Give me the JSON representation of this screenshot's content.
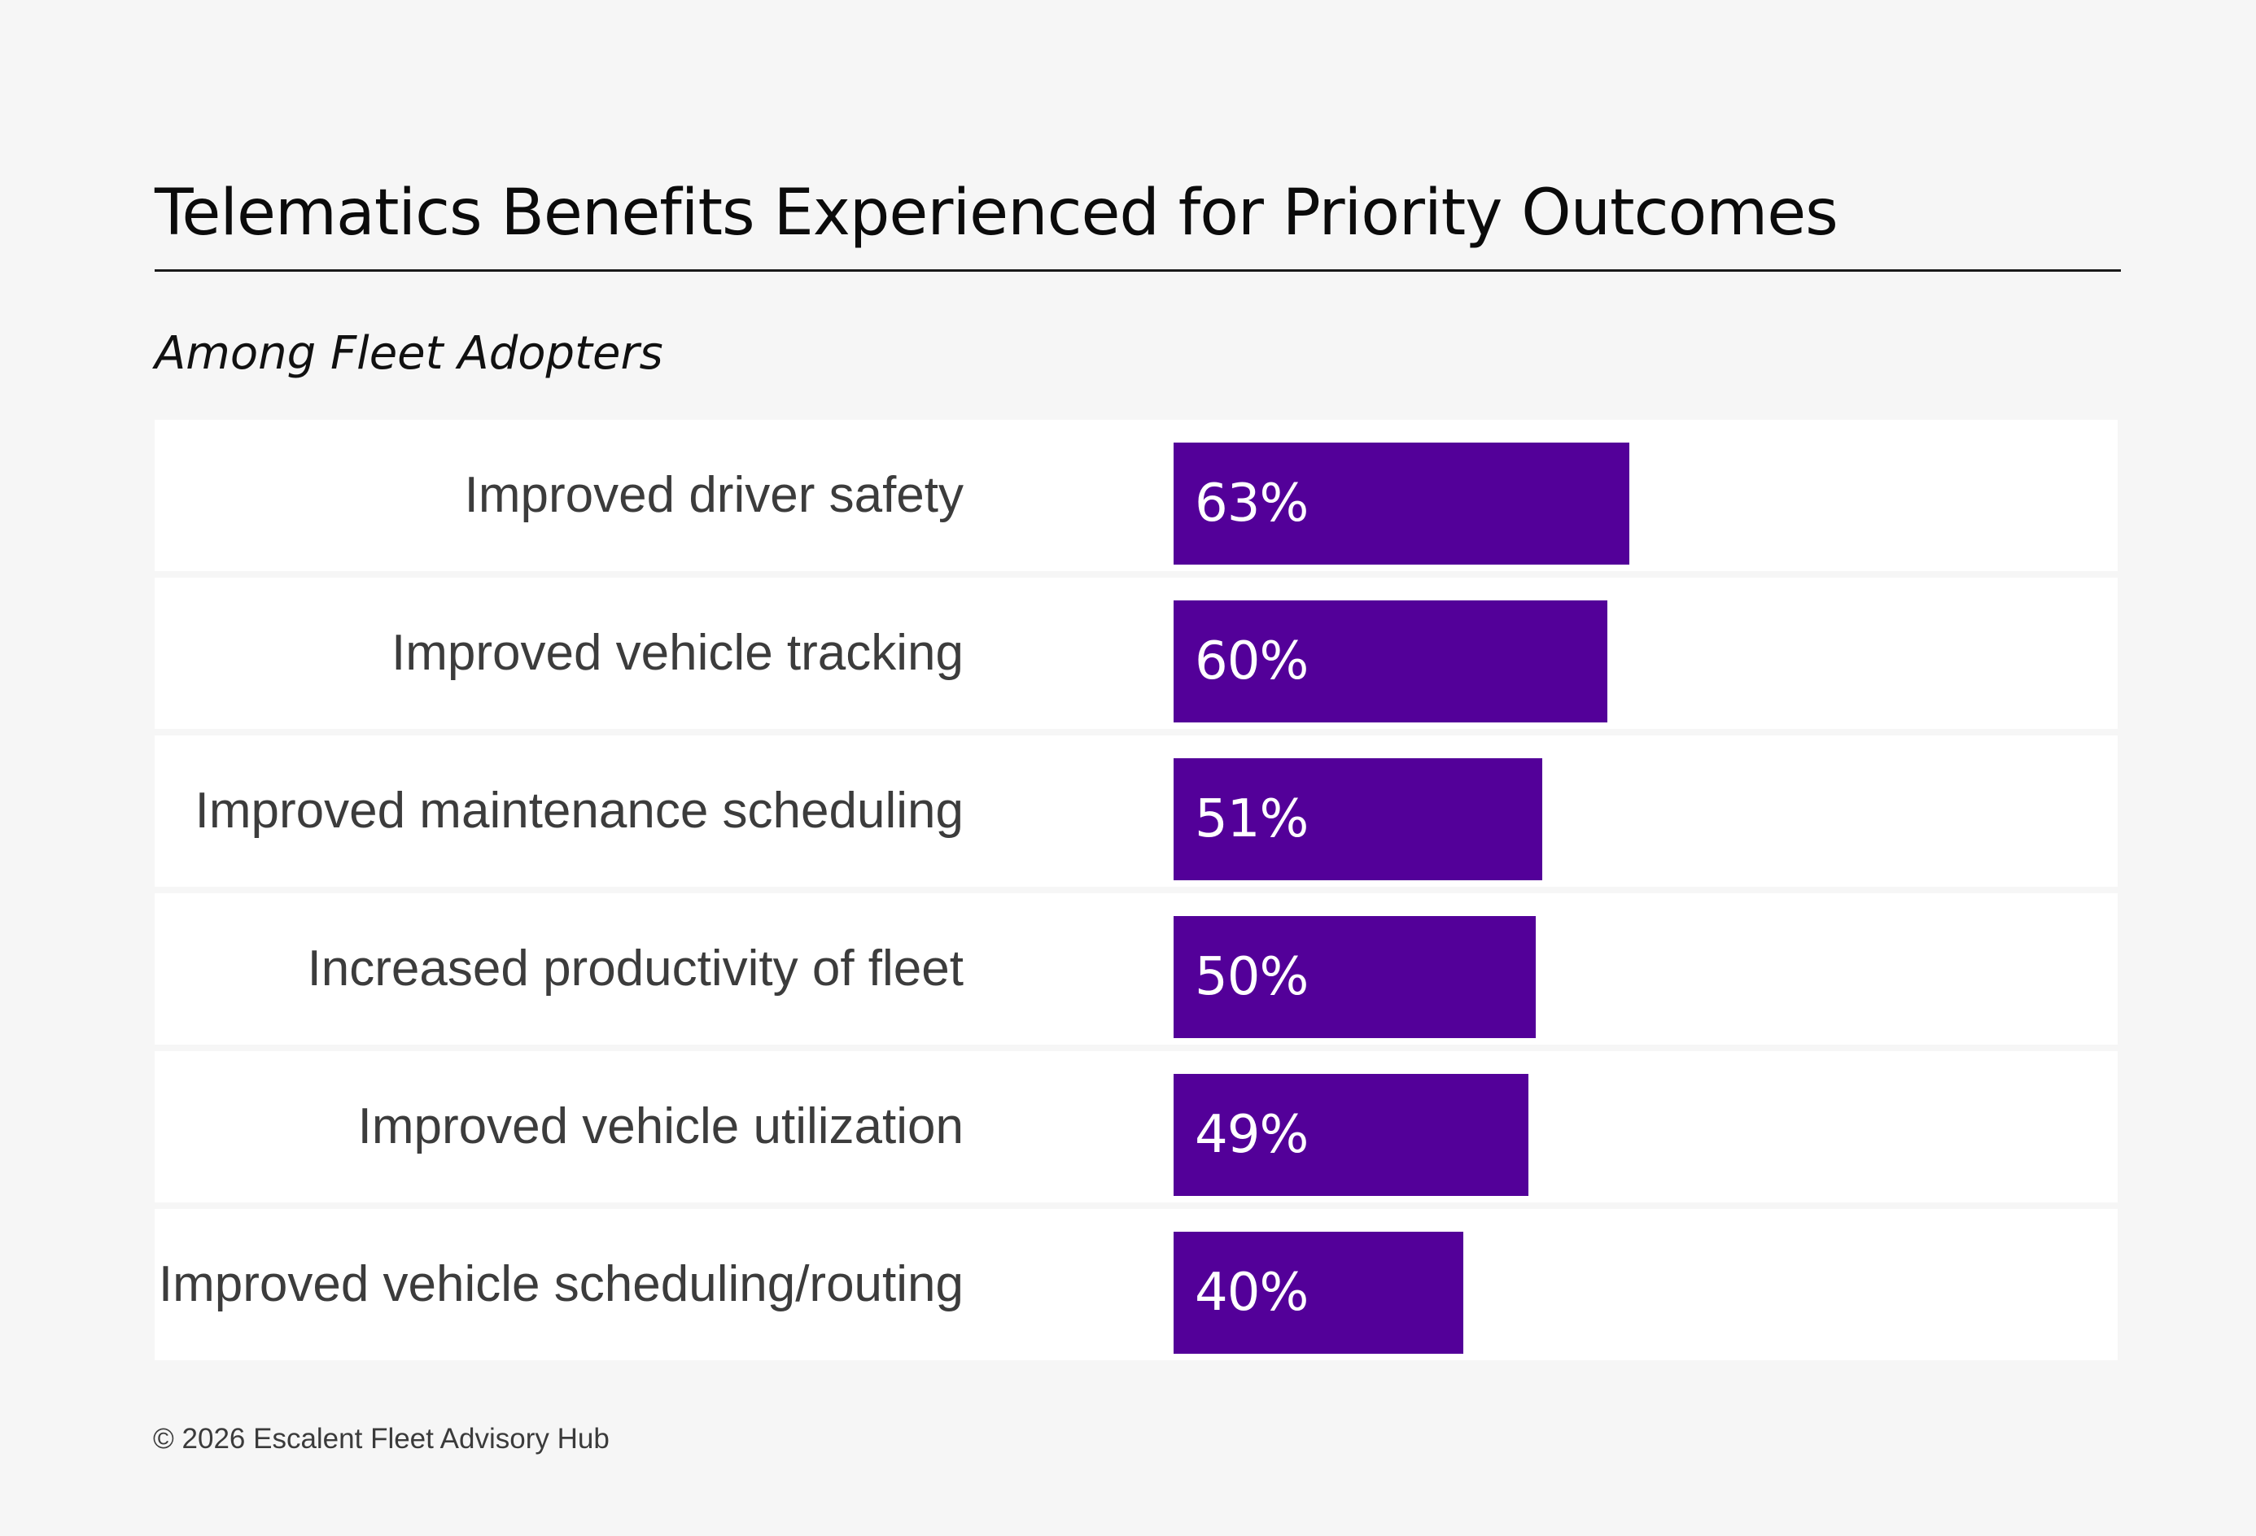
{
  "chart_data": {
    "type": "bar",
    "orientation": "horizontal",
    "title": "Telematics Benefits Experienced for Priority Outcomes",
    "subtitle": "Among Fleet Adopters",
    "categories": [
      "Improved driver safety",
      "Improved vehicle tracking",
      "Improved maintenance scheduling",
      "Increased productivity of fleet",
      "Improved vehicle utilization",
      "Improved vehicle scheduling/routing"
    ],
    "values": [
      63,
      60,
      51,
      50,
      49,
      40
    ],
    "value_labels": [
      "63%",
      "60%",
      "51%",
      "50%",
      "49%",
      "40%"
    ],
    "unit": "%",
    "xlim": [
      0,
      100
    ],
    "grid": false,
    "legend": "none",
    "colors": {
      "bar": "#530099",
      "bar_label": "#ffffff",
      "row_background": "#ffffff",
      "page_background": "#f6f6f6"
    }
  },
  "footer": "© 2026 Escalent Fleet Advisory Hub"
}
